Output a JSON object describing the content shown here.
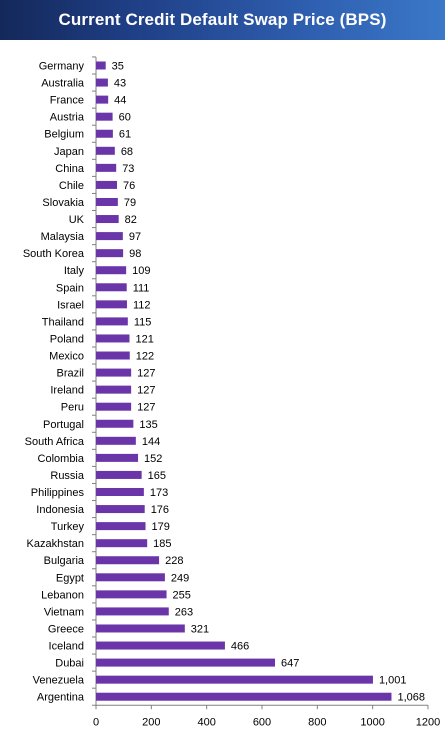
{
  "title": "Current Credit Default Swap Price (BPS)",
  "colors": {
    "bar": "#6a35a8",
    "title_bg": "#1f3f86",
    "axis": "#808080"
  },
  "chart_data": {
    "type": "bar",
    "orientation": "horizontal",
    "title": "Current Credit Default Swap Price (BPS)",
    "categories": [
      "Germany",
      "Australia",
      "France",
      "Austria",
      "Belgium",
      "Japan",
      "China",
      "Chile",
      "Slovakia",
      "UK",
      "Malaysia",
      "South Korea",
      "Italy",
      "Spain",
      "Israel",
      "Thailand",
      "Poland",
      "Mexico",
      "Brazil",
      "Ireland",
      "Peru",
      "Portugal",
      "South Africa",
      "Colombia",
      "Russia",
      "Philippines",
      "Indonesia",
      "Turkey",
      "Kazakhstan",
      "Bulgaria",
      "Egypt",
      "Lebanon",
      "Vietnam",
      "Greece",
      "Iceland",
      "Dubai",
      "Venezuela",
      "Argentina"
    ],
    "values": [
      35,
      43,
      44,
      60,
      61,
      68,
      73,
      76,
      79,
      82,
      97,
      98,
      109,
      111,
      112,
      115,
      121,
      122,
      127,
      127,
      127,
      135,
      144,
      152,
      165,
      173,
      176,
      179,
      185,
      228,
      249,
      255,
      263,
      321,
      466,
      647,
      1001,
      1068
    ],
    "value_labels": [
      "35",
      "43",
      "44",
      "60",
      "61",
      "68",
      "73",
      "76",
      "79",
      "82",
      "97",
      "98",
      "109",
      "111",
      "112",
      "115",
      "121",
      "122",
      "127",
      "127",
      "127",
      "135",
      "144",
      "152",
      "165",
      "173",
      "176",
      "179",
      "185",
      "228",
      "249",
      "255",
      "263",
      "321",
      "466",
      "647",
      "1,001",
      "1,068"
    ],
    "x_ticks": [
      "0",
      "200",
      "400",
      "600",
      "800",
      "1000",
      "1200"
    ],
    "xlim": [
      0,
      1200
    ],
    "xlabel": "",
    "ylabel": "",
    "grid": false,
    "legend": "none"
  }
}
